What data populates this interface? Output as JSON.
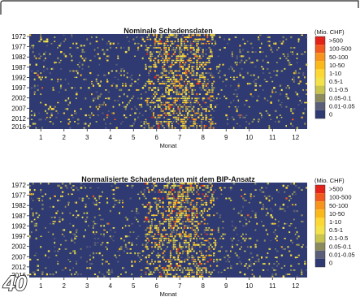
{
  "figure_number": "40",
  "chart_data": [
    {
      "type": "heatmap",
      "title": "Nominale Schadensdaten",
      "xlabel": "Monat",
      "ylabel": "",
      "x_ticks": [
        "1",
        "2",
        "3",
        "4",
        "5",
        "6",
        "7",
        "8",
        "9",
        "10",
        "11",
        "12"
      ],
      "y_ticks": [
        "1972",
        "1977",
        "1982",
        "1987",
        "1992",
        "1997",
        "2002",
        "2007",
        "2012",
        "2016"
      ],
      "x_range": [
        1,
        12
      ],
      "y_range": [
        1972,
        2016
      ],
      "legend_title": "(Mio. CHF)",
      "legend_position": "right",
      "legend": [
        {
          "label": ">500",
          "color": "#e2231a"
        },
        {
          "label": "100-500",
          "color": "#f05a1e"
        },
        {
          "label": "50-100",
          "color": "#f7941d"
        },
        {
          "label": "10-50",
          "color": "#fbb81b"
        },
        {
          "label": "1-10",
          "color": "#fdd835"
        },
        {
          "label": "0.5-1",
          "color": "#f3e24a"
        },
        {
          "label": "0.1-0.5",
          "color": "#c8c44e"
        },
        {
          "label": "0.05-0.1",
          "color": "#8a8a5c"
        },
        {
          "label": "0.01-0.05",
          "color": "#5a5e78"
        },
        {
          "label": "0",
          "color": "#2f3a72"
        }
      ],
      "background_color": "#2f3a72",
      "summer_peak_months": [
        6,
        8
      ]
    },
    {
      "type": "heatmap",
      "title": "Normalisierte Schadensdaten mit dem BIP-Ansatz",
      "xlabel": "Monat",
      "ylabel": "",
      "x_ticks": [
        "1",
        "2",
        "3",
        "4",
        "5",
        "6",
        "7",
        "8",
        "9",
        "10",
        "11",
        "12"
      ],
      "y_ticks": [
        "1972",
        "1977",
        "1982",
        "1987",
        "1992",
        "1997",
        "2002",
        "2007",
        "2012",
        "2016"
      ],
      "x_range": [
        1,
        12
      ],
      "y_range": [
        1972,
        2016
      ],
      "legend_title": "(Mio. CHF)",
      "legend_position": "right",
      "legend": [
        {
          "label": ">500",
          "color": "#e2231a"
        },
        {
          "label": "100-500",
          "color": "#f05a1e"
        },
        {
          "label": "50-100",
          "color": "#f7941d"
        },
        {
          "label": "10-50",
          "color": "#fbb81b"
        },
        {
          "label": "1-10",
          "color": "#fdd835"
        },
        {
          "label": "0.5-1",
          "color": "#f3e24a"
        },
        {
          "label": "0.1-0.5",
          "color": "#c8c44e"
        },
        {
          "label": "0.05-0.1",
          "color": "#8a8a5c"
        },
        {
          "label": "0.01-0.05",
          "color": "#5a5e78"
        },
        {
          "label": "0",
          "color": "#2f3a72"
        }
      ],
      "background_color": "#2f3a72",
      "summer_peak_months": [
        6,
        8
      ]
    }
  ]
}
